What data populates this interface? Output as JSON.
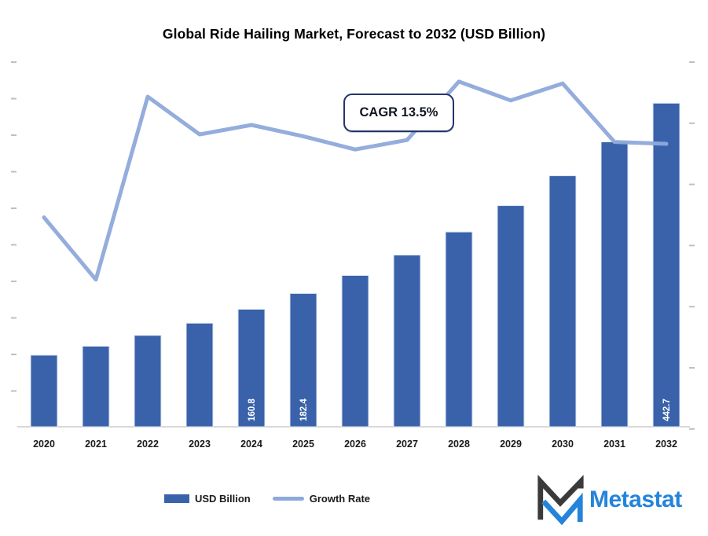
{
  "title": "Global Ride Hailing Market, Forecast to 2032 (USD Billion)",
  "annotation": {
    "cagr_label": "CAGR 13.5%"
  },
  "legend": {
    "bar_label": "USD Billion",
    "line_label": "Growth Rate"
  },
  "logo": {
    "text": "Metastat"
  },
  "colors": {
    "bar": "#3A62AB",
    "bar_edge": "#DFE7F5",
    "line": "#8EA9DB",
    "baseline": "#D9D9D9",
    "tick": "#8A8A8A",
    "cagr_border": "#24356B",
    "logo_blue": "#2484DB",
    "logo_dark": "#3A3A3A",
    "bar_value_label_text": "#FFFFFF"
  },
  "chart_data": {
    "type": "bar",
    "subtype": "combo-bar-line",
    "title": "Global Ride Hailing Market, Forecast to 2032 (USD Billion)",
    "categories": [
      "2020",
      "2021",
      "2022",
      "2023",
      "2024",
      "2025",
      "2026",
      "2027",
      "2028",
      "2029",
      "2030",
      "2031",
      "2032"
    ],
    "series": [
      {
        "name": "USD Billion",
        "type": "bar",
        "axis": "left",
        "values": [
          98.0,
          110.2,
          125.1,
          141.7,
          160.8,
          182.4,
          207.0,
          234.9,
          266.6,
          302.6,
          343.4,
          389.8,
          442.7
        ]
      },
      {
        "name": "Growth Rate",
        "type": "line",
        "axis": "right",
        "estimated": true,
        "values": [
          11.1,
          7.8,
          17.5,
          15.5,
          16.0,
          15.4,
          14.7,
          15.2,
          18.3,
          17.3,
          18.2,
          15.1,
          15.0
        ]
      }
    ],
    "bar_labels_shown": [
      "2024",
      "2025",
      "2032"
    ],
    "visible_bar_labels": {
      "2024": "160.8",
      "2025": "182.4",
      "2032": "442.7"
    },
    "cagr_annotation": "CAGR 13.5%",
    "left_axis": {
      "min": 0,
      "max": 500,
      "tick_interval": 50,
      "tick_labels_visible": false
    },
    "right_axis": {
      "min": 0,
      "max": 20,
      "unit": "%",
      "tick_labels_visible": false,
      "estimated": true
    },
    "gridlines": false,
    "legend_position": "bottom"
  }
}
